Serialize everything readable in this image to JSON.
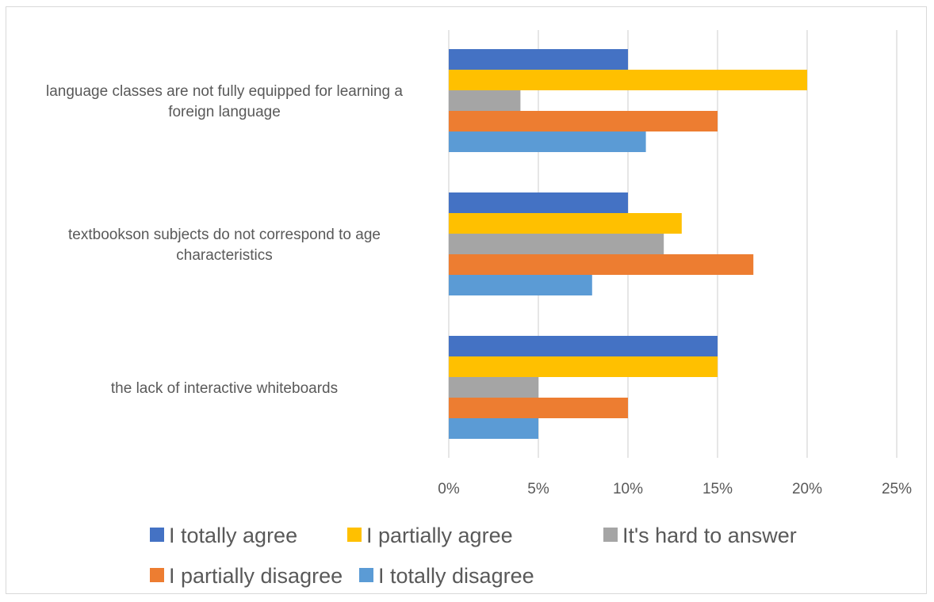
{
  "chart_data": {
    "type": "bar",
    "orientation": "horizontal",
    "categories": [
      [
        "language classes are not fully equipped for learning a",
        "foreign language"
      ],
      [
        "textbookson subjects do not correspond to age",
        "characteristics"
      ],
      [
        "the lack of interactive whiteboards"
      ]
    ],
    "series": [
      {
        "name": "I totally agree",
        "color": "#4472c4",
        "values": [
          10,
          10,
          15
        ]
      },
      {
        "name": "I partially agree",
        "color": "#ffc000",
        "values": [
          20,
          13,
          15
        ]
      },
      {
        "name": "It's hard to answer",
        "color": "#a5a5a5",
        "values": [
          4,
          12,
          5
        ]
      },
      {
        "name": "I partially disagree",
        "color": "#ed7d31",
        "values": [
          15,
          17,
          10
        ]
      },
      {
        "name": "I totally disagree",
        "color": "#5b9bd5",
        "values": [
          11,
          8,
          5
        ]
      }
    ],
    "xlim": [
      0,
      25
    ],
    "xticks": [
      0,
      5,
      10,
      15,
      20,
      25
    ],
    "xtick_labels": [
      "0%",
      "5%",
      "10%",
      "15%",
      "20%",
      "25%"
    ],
    "grid": "vertical",
    "legend": "bottom",
    "gridline_color": "#d9d9d9"
  }
}
